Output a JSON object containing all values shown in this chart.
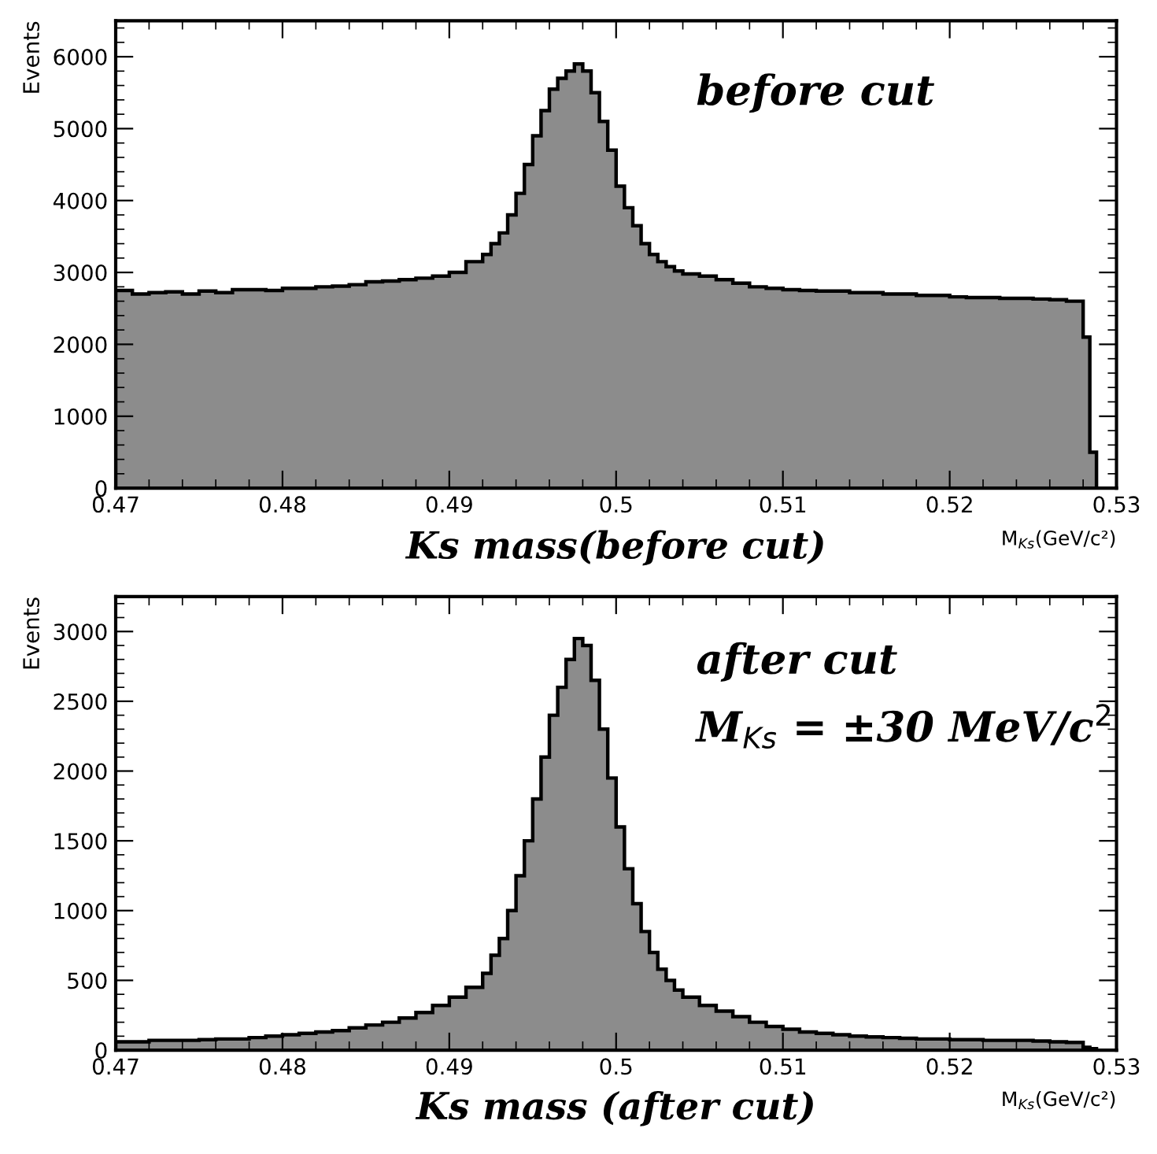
{
  "chart_data": [
    {
      "type": "histogram",
      "title": "Ks mass(before cut)",
      "xlabel": "M$_{Ks}$(GeV/c²)",
      "ylabel": "Events",
      "color": "#8c8c8c",
      "annotations": [
        "before cut"
      ],
      "bins": [
        0.47,
        0.471,
        0.472,
        0.473,
        0.474,
        0.475,
        0.476,
        0.477,
        0.478,
        0.479,
        0.48,
        0.481,
        0.482,
        0.483,
        0.484,
        0.485,
        0.486,
        0.487,
        0.488,
        0.489,
        0.49,
        0.491,
        0.492,
        0.4925,
        0.493,
        0.4935,
        0.494,
        0.4945,
        0.495,
        0.4955,
        0.496,
        0.4965,
        0.497,
        0.4975,
        0.498,
        0.4985,
        0.499,
        0.4995,
        0.5,
        0.5005,
        0.501,
        0.5015,
        0.502,
        0.5025,
        0.503,
        0.5035,
        0.504,
        0.505,
        0.506,
        0.507,
        0.508,
        0.509,
        0.51,
        0.511,
        0.512,
        0.513,
        0.514,
        0.515,
        0.516,
        0.517,
        0.518,
        0.519,
        0.52,
        0.521,
        0.522,
        0.523,
        0.524,
        0.525,
        0.526,
        0.527,
        0.528,
        0.5284,
        0.5288
      ],
      "values": [
        2750,
        2700,
        2720,
        2730,
        2700,
        2740,
        2720,
        2760,
        2760,
        2750,
        2780,
        2780,
        2800,
        2810,
        2830,
        2870,
        2880,
        2900,
        2920,
        2950,
        3000,
        3150,
        3250,
        3400,
        3550,
        3800,
        4100,
        4500,
        4900,
        5250,
        5550,
        5700,
        5800,
        5900,
        5800,
        5500,
        5100,
        4700,
        4200,
        3900,
        3650,
        3400,
        3250,
        3150,
        3080,
        3020,
        2980,
        2950,
        2900,
        2850,
        2800,
        2780,
        2760,
        2750,
        2740,
        2740,
        2720,
        2720,
        2700,
        2700,
        2680,
        2680,
        2660,
        2650,
        2650,
        2640,
        2640,
        2630,
        2620,
        2600,
        2100,
        500
      ],
      "xlim": [
        0.47,
        0.53
      ],
      "xticks": [
        0.47,
        0.48,
        0.49,
        0.5,
        0.51,
        0.52,
        0.53
      ],
      "ylim": [
        0,
        6500
      ],
      "yticks": [
        0,
        1000,
        2000,
        3000,
        4000,
        5000,
        6000
      ]
    },
    {
      "type": "histogram",
      "title": "Ks mass (after cut)",
      "xlabel": "M$_{Ks}$(GeV/c²)",
      "ylabel": "Events",
      "color": "#8c8c8c",
      "annotations": [
        "after cut",
        "M$_{Ks}$ = ±30 MeV/c$^{2}$"
      ],
      "bins": [
        0.47,
        0.471,
        0.472,
        0.473,
        0.474,
        0.475,
        0.476,
        0.477,
        0.478,
        0.479,
        0.48,
        0.481,
        0.482,
        0.483,
        0.484,
        0.485,
        0.486,
        0.487,
        0.488,
        0.489,
        0.49,
        0.491,
        0.492,
        0.4925,
        0.493,
        0.4935,
        0.494,
        0.4945,
        0.495,
        0.4955,
        0.496,
        0.4965,
        0.497,
        0.4975,
        0.498,
        0.4985,
        0.499,
        0.4995,
        0.5,
        0.5005,
        0.501,
        0.5015,
        0.502,
        0.5025,
        0.503,
        0.5035,
        0.504,
        0.505,
        0.506,
        0.507,
        0.508,
        0.509,
        0.51,
        0.511,
        0.512,
        0.513,
        0.514,
        0.515,
        0.516,
        0.517,
        0.518,
        0.519,
        0.52,
        0.521,
        0.522,
        0.523,
        0.524,
        0.525,
        0.526,
        0.527,
        0.528,
        0.5284,
        0.5288
      ],
      "values": [
        60,
        60,
        70,
        70,
        70,
        75,
        80,
        80,
        90,
        100,
        110,
        120,
        130,
        140,
        160,
        180,
        200,
        230,
        270,
        320,
        380,
        450,
        550,
        680,
        800,
        1000,
        1250,
        1500,
        1800,
        2100,
        2400,
        2600,
        2800,
        2950,
        2900,
        2650,
        2300,
        1950,
        1600,
        1300,
        1050,
        850,
        700,
        580,
        500,
        430,
        380,
        320,
        280,
        240,
        200,
        170,
        150,
        130,
        120,
        110,
        100,
        95,
        90,
        85,
        80,
        80,
        75,
        75,
        70,
        70,
        70,
        65,
        60,
        55,
        20,
        10
      ],
      "xlim": [
        0.47,
        0.53
      ],
      "xticks": [
        0.47,
        0.48,
        0.49,
        0.5,
        0.51,
        0.52,
        0.53
      ],
      "ylim": [
        0,
        3250
      ],
      "yticks": [
        0,
        500,
        1000,
        1500,
        2000,
        2500,
        3000
      ]
    }
  ]
}
